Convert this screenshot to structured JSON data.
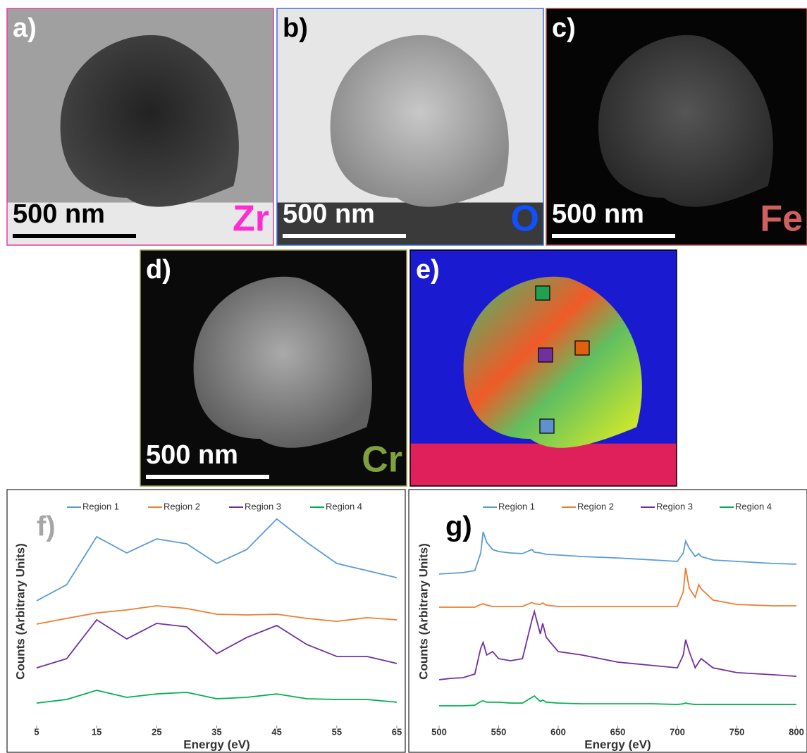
{
  "panels": [
    {
      "label": "a)",
      "scale": "500 nm",
      "element": "Zr"
    },
    {
      "label": "b)",
      "scale": "500 nm",
      "element": "O"
    },
    {
      "label": "c)",
      "scale": "500 nm",
      "element": "Fe"
    },
    {
      "label": "d)",
      "scale": "500 nm",
      "element": "Cr"
    },
    {
      "label": "e)"
    }
  ],
  "chart_data": [
    {
      "type": "line",
      "label": "f)",
      "xlabel": "Energy (eV)",
      "ylabel": "Counts (Arbitrary Units)",
      "x": [
        5,
        10,
        15,
        20,
        25,
        30,
        35,
        40,
        45,
        50,
        55,
        60,
        65
      ],
      "xlim": [
        5,
        65
      ],
      "xticks": [
        5,
        15,
        25,
        35,
        45,
        55,
        65
      ],
      "ylim": [
        0,
        100
      ],
      "series": [
        {
          "name": "Region 1",
          "color": "#5b9bd5",
          "values": [
            54.5,
            61.5,
            82.5,
            75.4,
            81.5,
            79.4,
            70.8,
            76.9,
            90.2,
            80.0,
            70.8,
            67.7,
            64.6
          ]
        },
        {
          "name": "Region 2",
          "color": "#ed7d31",
          "values": [
            44.3,
            46.8,
            49.2,
            50.5,
            52.3,
            51.1,
            48.6,
            48.3,
            48.6,
            46.8,
            45.5,
            47.1,
            46.2
          ]
        },
        {
          "name": "Region 3",
          "color": "#7030a0",
          "values": [
            25.2,
            29.2,
            46.2,
            37.8,
            44.6,
            43.1,
            31.4,
            38.5,
            43.7,
            35.4,
            30.2,
            30.2,
            27.1
          ]
        },
        {
          "name": "Region 4",
          "color": "#00b050",
          "values": [
            9.8,
            11.4,
            15.4,
            12.3,
            13.8,
            14.5,
            11.7,
            12.3,
            13.8,
            11.7,
            11.4,
            11.4,
            10.2
          ]
        }
      ]
    },
    {
      "type": "line",
      "label": "g)",
      "xlabel": "Energy (eV)",
      "ylabel": "Counts (Arbitrary Units)",
      "x": [
        500,
        510,
        520,
        530,
        535,
        537,
        540,
        545,
        550,
        560,
        570,
        578,
        580,
        585,
        587,
        590,
        600,
        620,
        650,
        680,
        700,
        705,
        707,
        710,
        715,
        718,
        720,
        730,
        750,
        780,
        800
      ],
      "xlim": [
        500,
        800
      ],
      "xticks": [
        500,
        550,
        600,
        650,
        700,
        750,
        800
      ],
      "ylim": [
        0,
        100
      ],
      "series": [
        {
          "name": "Region 1",
          "color": "#5b9bd5",
          "values": [
            66.2,
            66.5,
            66.8,
            67.7,
            75.4,
            84.6,
            80.0,
            76.9,
            76.0,
            75.4,
            75.1,
            76.9,
            75.7,
            75.4,
            75.1,
            74.8,
            74.5,
            73.8,
            73.2,
            72.3,
            71.7,
            75.4,
            80.6,
            77.5,
            73.8,
            75.1,
            73.8,
            72.3,
            71.7,
            70.8,
            70.5
          ]
        },
        {
          "name": "Region 2",
          "color": "#ed7d31",
          "values": [
            51.7,
            51.7,
            51.7,
            51.7,
            52.9,
            53.2,
            52.6,
            52.0,
            52.0,
            52.0,
            52.0,
            53.8,
            53.2,
            52.9,
            53.5,
            52.6,
            52.0,
            52.0,
            52.0,
            52.0,
            52.0,
            58.5,
            68.9,
            60.0,
            56.0,
            61.5,
            59.7,
            54.8,
            52.9,
            52.3,
            52.3
          ]
        },
        {
          "name": "Region 3",
          "color": "#7030a0",
          "values": [
            20.0,
            20.6,
            20.9,
            22.5,
            33.8,
            36.3,
            30.8,
            32.3,
            29.2,
            28.3,
            29.2,
            46.2,
            49.8,
            40.0,
            44.6,
            38.5,
            32.3,
            30.8,
            27.7,
            26.2,
            25.2,
            30.8,
            37.5,
            32.3,
            25.2,
            27.7,
            29.2,
            25.2,
            23.1,
            22.2,
            21.5
          ]
        },
        {
          "name": "Region 4",
          "color": "#00b050",
          "values": [
            8.6,
            8.6,
            8.6,
            8.9,
            10.5,
            10.8,
            10.2,
            10.2,
            10.2,
            9.8,
            9.8,
            12.3,
            12.9,
            10.5,
            11.1,
            10.2,
            9.8,
            9.5,
            9.5,
            9.5,
            9.2,
            9.5,
            9.8,
            9.5,
            9.2,
            9.2,
            9.2,
            9.2,
            9.2,
            9.2,
            9.2
          ]
        }
      ]
    }
  ]
}
